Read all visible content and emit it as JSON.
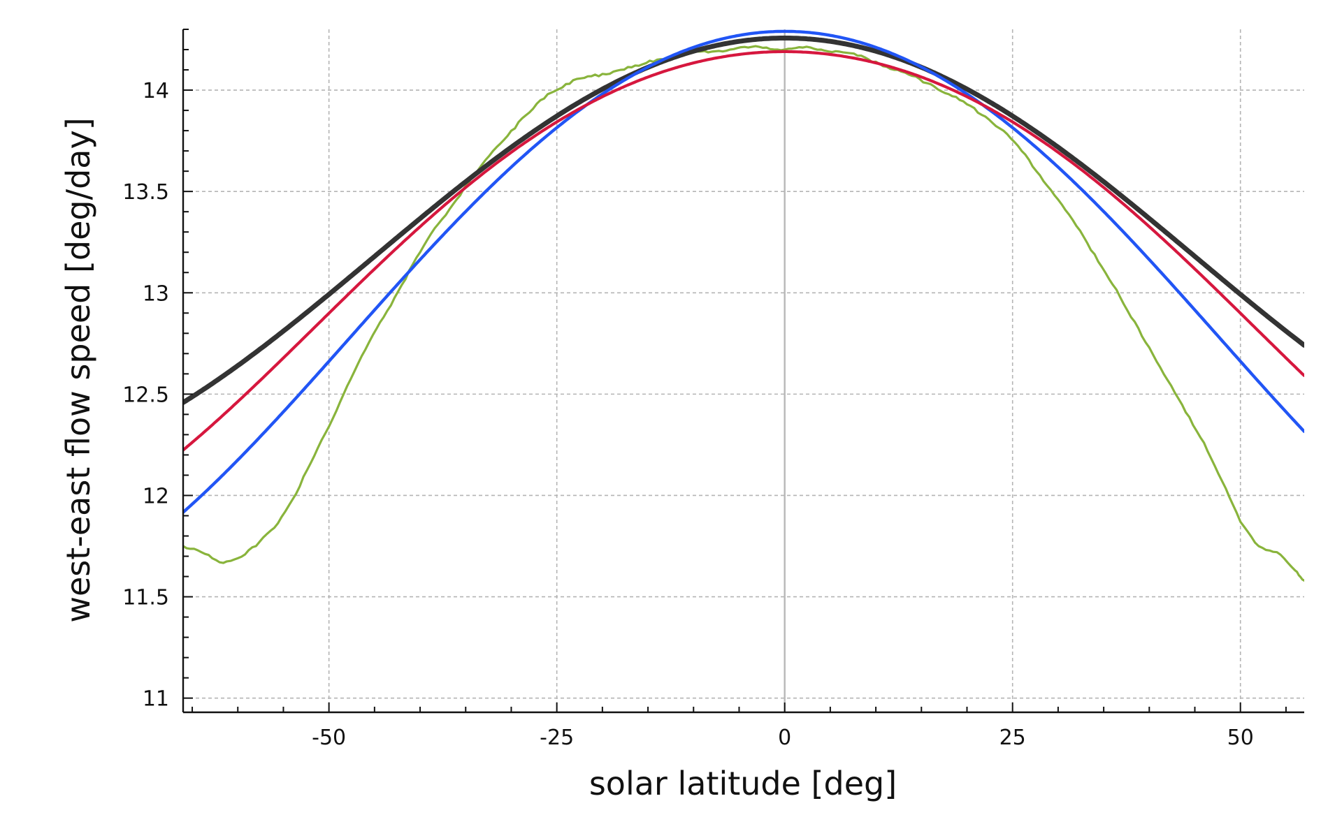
{
  "chart_data": {
    "type": "line",
    "xlabel": "solar latitude [deg]",
    "ylabel": "west-east flow speed [deg/day]",
    "xlim": [
      -66,
      57
    ],
    "ylim": [
      10.93,
      14.3
    ],
    "xticks": [
      -50,
      -25,
      0,
      25,
      50
    ],
    "yticks": [
      11,
      11.5,
      12,
      12.5,
      13,
      13.5,
      14
    ],
    "x_minor_step": 5,
    "y_minor_step": 0.1,
    "grid": true,
    "legend": "none",
    "series": [
      {
        "color": "#89b43c",
        "line_style": "noisy",
        "x": [
          -66,
          -64,
          -62,
          -60,
          -58,
          -56,
          -54,
          -52,
          -50,
          -48,
          -46,
          -44,
          -42,
          -40,
          -38,
          -36,
          -34,
          -32,
          -30,
          -28,
          -26,
          -24,
          -22,
          -20,
          -18,
          -16,
          -14,
          -12,
          -10,
          -8,
          -6,
          -4,
          -2,
          0,
          2,
          4,
          6,
          8,
          10,
          12,
          14,
          16,
          18,
          20,
          22,
          24,
          26,
          28,
          30,
          32,
          34,
          36,
          38,
          40,
          42,
          44,
          46,
          48,
          50,
          52,
          54,
          56,
          57
        ],
        "y": [
          11.75,
          11.72,
          11.67,
          11.69,
          11.75,
          11.84,
          11.98,
          12.16,
          12.34,
          12.54,
          12.72,
          12.88,
          13.04,
          13.2,
          13.34,
          13.46,
          13.58,
          13.7,
          13.8,
          13.89,
          13.98,
          14.03,
          14.06,
          14.08,
          14.1,
          14.12,
          14.15,
          14.17,
          14.19,
          14.19,
          14.2,
          14.21,
          14.21,
          14.2,
          14.21,
          14.2,
          14.19,
          14.17,
          14.14,
          14.1,
          14.07,
          14.03,
          13.98,
          13.93,
          13.87,
          13.8,
          13.7,
          13.58,
          13.46,
          13.33,
          13.19,
          13.04,
          12.88,
          12.73,
          12.57,
          12.41,
          12.26,
          12.07,
          11.87,
          11.75,
          11.72,
          11.63,
          11.58
        ]
      },
      {
        "color": "#333333",
        "a": 14.257,
        "b": -2.155,
        "c": 0
      },
      {
        "color": "#2155f5",
        "a": 14.29,
        "b": -2.61,
        "c": -0.28
      },
      {
        "color": "#d6173e",
        "a": 14.19,
        "b": -1.83,
        "c": -0.63
      }
    ]
  }
}
